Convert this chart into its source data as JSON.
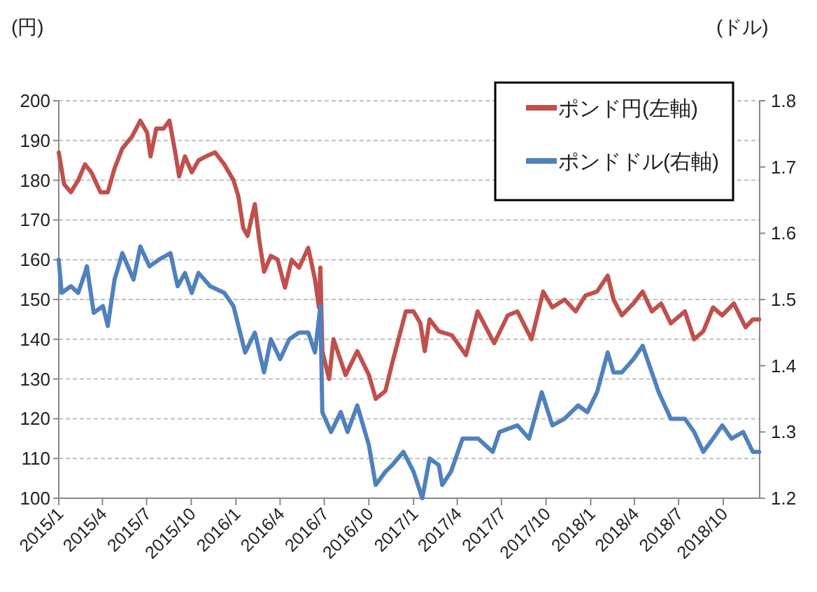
{
  "chart_data": {
    "type": "line",
    "ylabel": "(円)",
    "y2label": "(ドル)",
    "legend": "top right",
    "grid": "y",
    "line_style": "solid",
    "xlim": [
      "2015-01-01",
      "2018-12-15"
    ],
    "xticks": [
      {
        "value": "2015-01-01",
        "label": "2015/1"
      },
      {
        "value": "2015-04-01",
        "label": "2015/4"
      },
      {
        "value": "2015-07-01",
        "label": "2015/7"
      },
      {
        "value": "2015-10-01",
        "label": "2015/10"
      },
      {
        "value": "2016-01-01",
        "label": "2016/1"
      },
      {
        "value": "2016-04-01",
        "label": "2016/4"
      },
      {
        "value": "2016-07-01",
        "label": "2016/7"
      },
      {
        "value": "2016-10-01",
        "label": "2016/10"
      },
      {
        "value": "2017-01-01",
        "label": "2017/1"
      },
      {
        "value": "2017-04-01",
        "label": "2017/4"
      },
      {
        "value": "2017-07-01",
        "label": "2017/7"
      },
      {
        "value": "2017-10-01",
        "label": "2017/10"
      },
      {
        "value": "2018-01-01",
        "label": "2018/1"
      },
      {
        "value": "2018-04-01",
        "label": "2018/4"
      },
      {
        "value": "2018-07-01",
        "label": "2018/7"
      },
      {
        "value": "2018-10-01",
        "label": "2018/10"
      }
    ],
    "ylim": [
      100,
      200
    ],
    "yticks": [
      100,
      110,
      120,
      130,
      140,
      150,
      160,
      170,
      180,
      190,
      200
    ],
    "y2lim": [
      1.2,
      1.8
    ],
    "y2ticks": [
      1.2,
      1.3,
      1.4,
      1.5,
      1.6,
      1.7,
      1.8
    ],
    "series": [
      {
        "name": "ポンド円(左軸)",
        "color": "#c0504d",
        "axis": "y",
        "x": [
          "2015-01-01",
          "2015-01-12",
          "2015-01-26",
          "2015-02-10",
          "2015-02-24",
          "2015-03-09",
          "2015-03-28",
          "2015-04-12",
          "2015-04-26",
          "2015-05-12",
          "2015-06-01",
          "2015-06-18",
          "2015-07-02",
          "2015-07-09",
          "2015-07-21",
          "2015-08-05",
          "2015-08-17",
          "2015-08-29",
          "2015-09-06",
          "2015-09-18",
          "2015-10-02",
          "2015-10-16",
          "2015-10-31",
          "2015-11-19",
          "2015-12-08",
          "2015-12-27",
          "2016-01-06",
          "2016-01-16",
          "2016-01-25",
          "2016-02-09",
          "2016-02-18",
          "2016-02-28",
          "2016-03-13",
          "2016-03-27",
          "2016-04-11",
          "2016-04-25",
          "2016-05-10",
          "2016-05-29",
          "2016-06-12",
          "2016-06-20",
          "2016-06-23",
          "2016-06-27",
          "2016-07-11",
          "2016-07-20",
          "2016-08-14",
          "2016-09-07",
          "2016-10-01",
          "2016-10-15",
          "2016-11-04",
          "2016-11-18",
          "2016-12-16",
          "2017-01-01",
          "2017-01-15",
          "2017-01-24",
          "2017-02-03",
          "2017-02-22",
          "2017-03-21",
          "2017-04-19",
          "2017-05-13",
          "2017-06-16",
          "2017-07-14",
          "2017-08-03",
          "2017-09-01",
          "2017-09-25",
          "2017-10-14",
          "2017-11-08",
          "2017-12-01",
          "2017-12-21",
          "2018-01-14",
          "2018-02-05",
          "2018-02-17",
          "2018-03-06",
          "2018-03-30",
          "2018-04-18",
          "2018-05-07",
          "2018-05-26",
          "2018-06-15",
          "2018-07-14",
          "2018-08-02",
          "2018-08-21",
          "2018-09-10",
          "2018-09-29",
          "2018-10-23",
          "2018-11-16",
          "2018-12-01",
          "2018-12-14"
        ],
        "values": [
          187,
          179,
          177,
          180,
          184,
          182,
          177,
          177,
          183,
          188,
          191,
          195,
          192,
          186,
          193,
          193,
          195,
          187,
          181,
          186,
          182,
          185,
          186,
          187,
          184,
          180,
          176,
          168,
          166,
          174,
          165,
          157,
          161,
          160,
          153,
          160,
          158,
          163,
          155,
          148,
          158,
          137,
          130,
          140,
          131,
          137,
          131,
          125,
          127,
          134,
          147,
          147,
          144,
          137,
          145,
          142,
          141,
          136,
          147,
          139,
          146,
          147,
          140,
          152,
          148,
          150,
          147,
          151,
          152,
          156,
          150,
          146,
          149,
          152,
          147,
          149,
          144,
          147,
          140,
          142,
          148,
          146,
          149,
          143,
          145,
          145
        ]
      },
      {
        "name": "ポンドドル(右軸)",
        "color": "#4f81bd",
        "axis": "y2",
        "x": [
          "2015-01-01",
          "2015-01-07",
          "2015-01-26",
          "2015-02-10",
          "2015-02-24",
          "2015-02-28",
          "2015-03-14",
          "2015-04-02",
          "2015-04-12",
          "2015-04-26",
          "2015-05-12",
          "2015-06-04",
          "2015-06-18",
          "2015-07-07",
          "2015-07-26",
          "2015-08-19",
          "2015-09-03",
          "2015-09-18",
          "2015-10-02",
          "2015-10-16",
          "2015-11-09",
          "2015-12-08",
          "2015-12-27",
          "2016-01-20",
          "2016-02-09",
          "2016-02-28",
          "2016-03-13",
          "2016-04-01",
          "2016-04-20",
          "2016-05-10",
          "2016-05-29",
          "2016-06-12",
          "2016-06-23",
          "2016-06-27",
          "2016-07-15",
          "2016-08-04",
          "2016-08-18",
          "2016-09-07",
          "2016-10-01",
          "2016-10-15",
          "2016-11-04",
          "2016-11-18",
          "2016-12-11",
          "2017-01-01",
          "2017-01-19",
          "2017-02-03",
          "2017-02-22",
          "2017-03-01",
          "2017-03-19",
          "2017-04-12",
          "2017-05-14",
          "2017-06-13",
          "2017-06-27",
          "2017-08-03",
          "2017-08-27",
          "2017-09-22",
          "2017-10-14",
          "2017-11-08",
          "2017-12-06",
          "2017-12-25",
          "2018-01-14",
          "2018-02-05",
          "2018-02-17",
          "2018-03-06",
          "2018-03-30",
          "2018-04-18",
          "2018-05-21",
          "2018-06-15",
          "2018-07-14",
          "2018-08-02",
          "2018-08-21",
          "2018-09-10",
          "2018-09-29",
          "2018-10-18",
          "2018-11-11",
          "2018-12-01",
          "2018-12-14"
        ],
        "values": [
          1.56,
          1.51,
          1.52,
          1.51,
          1.54,
          1.55,
          1.48,
          1.49,
          1.46,
          1.53,
          1.57,
          1.53,
          1.58,
          1.55,
          1.56,
          1.57,
          1.52,
          1.54,
          1.51,
          1.54,
          1.52,
          1.51,
          1.49,
          1.42,
          1.45,
          1.39,
          1.44,
          1.41,
          1.44,
          1.45,
          1.45,
          1.42,
          1.49,
          1.33,
          1.3,
          1.33,
          1.3,
          1.34,
          1.28,
          1.22,
          1.24,
          1.25,
          1.27,
          1.24,
          1.2,
          1.26,
          1.25,
          1.22,
          1.24,
          1.29,
          1.29,
          1.27,
          1.3,
          1.31,
          1.29,
          1.36,
          1.31,
          1.32,
          1.34,
          1.33,
          1.36,
          1.42,
          1.39,
          1.39,
          1.41,
          1.43,
          1.36,
          1.32,
          1.32,
          1.3,
          1.27,
          1.29,
          1.31,
          1.29,
          1.3,
          1.27,
          1.27
        ]
      }
    ]
  }
}
